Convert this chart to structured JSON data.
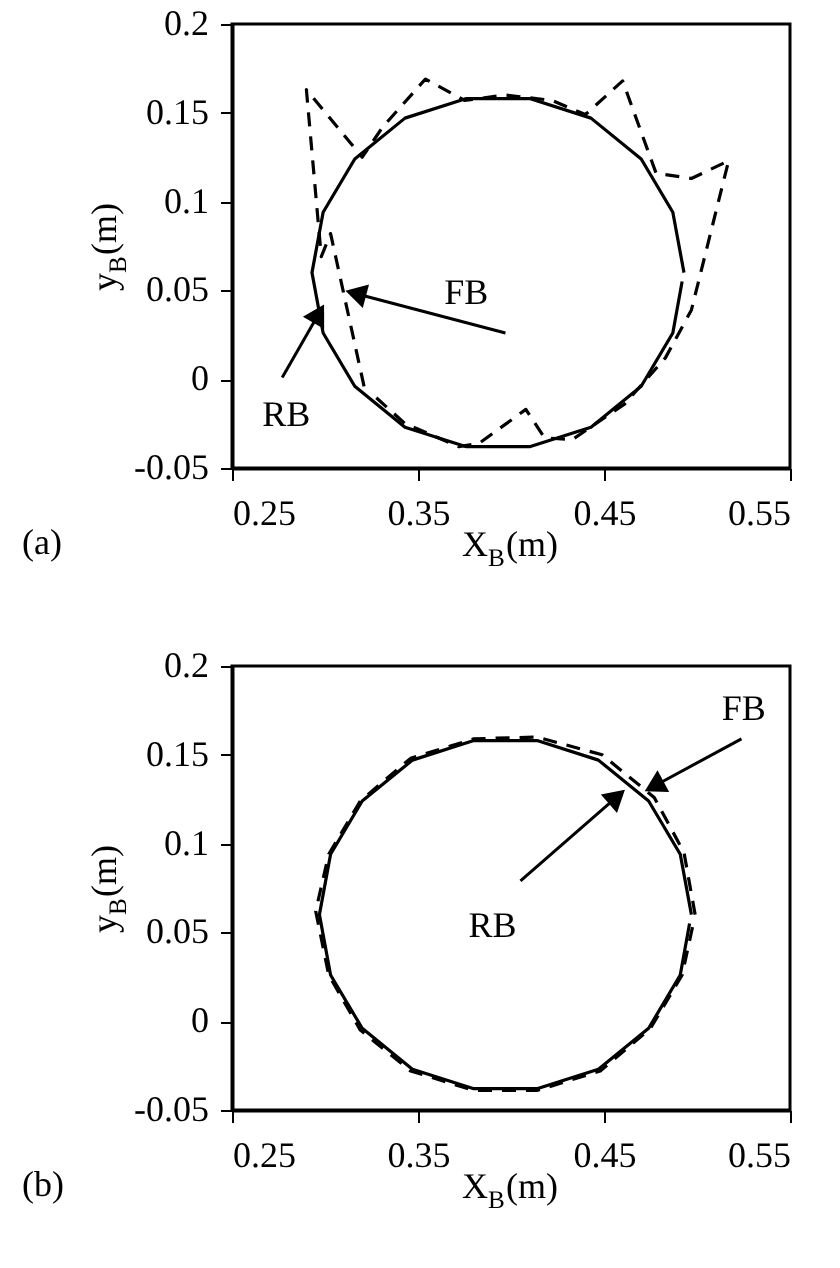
{
  "chart_data": [
    {
      "type": "line",
      "xlabel": "X$_{B}$(m)",
      "ylabel": "y$_{B}$(m)",
      "xlim": [
        0.25,
        0.55
      ],
      "ylim": [
        -0.05,
        0.2
      ],
      "xticks": [
        0.25,
        0.35,
        0.45,
        0.55
      ],
      "yticks": [
        -0.05,
        0,
        0.05,
        0.1,
        0.15,
        0.2
      ],
      "grid": false,
      "series": [
        {
          "color": "#000000",
          "line_style": "solid",
          "x": [
            0.493,
            0.487,
            0.47,
            0.443,
            0.41,
            0.376,
            0.343,
            0.316,
            0.299,
            0.293,
            0.299,
            0.316,
            0.343,
            0.376,
            0.41,
            0.443,
            0.47,
            0.487,
            0.492
          ],
          "values": [
            0.06,
            0.094,
            0.124,
            0.147,
            0.158,
            0.158,
            0.147,
            0.124,
            0.094,
            0.06,
            0.026,
            -0.004,
            -0.027,
            -0.038,
            -0.038,
            -0.027,
            -0.004,
            0.026,
            0.055
          ]
        },
        {
          "color": "#000000",
          "line_style": "dashed",
          "x": [
            0.321,
            0.303,
            0.298,
            0.29,
            0.32,
            0.331,
            0.354,
            0.375,
            0.397,
            0.422,
            0.44,
            0.46,
            0.478,
            0.497,
            0.517,
            0.497,
            0.483,
            0.461,
            0.433,
            0.418,
            0.408,
            0.383,
            0.372,
            0.343,
            0.325
          ],
          "values": [
            -0.004,
            0.082,
            0.069,
            0.163,
            0.125,
            0.142,
            0.169,
            0.157,
            0.16,
            0.157,
            0.149,
            0.168,
            0.116,
            0.113,
            0.123,
            0.039,
            0.012,
            -0.014,
            -0.034,
            -0.033,
            -0.017,
            -0.036,
            -0.038,
            -0.025,
            -0.008
          ]
        }
      ],
      "annotations": [
        "(a)",
        {
          "text": "FB",
          "x": 0.31,
          "y": 0.05
        },
        {
          "text": "RB",
          "x": 0.3,
          "y": 0.043
        }
      ]
    },
    {
      "type": "line",
      "xlabel": "X$_{B}$(m)",
      "ylabel": "y$_{B}$(m)",
      "xlim": [
        0.25,
        0.55
      ],
      "ylim": [
        -0.05,
        0.2
      ],
      "xticks": [
        0.25,
        0.35,
        0.45,
        0.55
      ],
      "yticks": [
        -0.05,
        0,
        0.05,
        0.1,
        0.15,
        0.2
      ],
      "grid": false,
      "series": [
        {
          "color": "#000000",
          "line_style": "solid",
          "x": [
            0.497,
            0.491,
            0.474,
            0.447,
            0.414,
            0.38,
            0.347,
            0.32,
            0.303,
            0.297,
            0.303,
            0.32,
            0.347,
            0.38,
            0.414,
            0.447,
            0.474,
            0.491,
            0.496
          ],
          "values": [
            0.06,
            0.094,
            0.124,
            0.147,
            0.158,
            0.158,
            0.147,
            0.124,
            0.094,
            0.06,
            0.026,
            -0.004,
            -0.027,
            -0.038,
            -0.038,
            -0.027,
            -0.004,
            0.026,
            0.055
          ]
        },
        {
          "color": "#000000",
          "line_style": "dashed",
          "x": [
            0.499,
            0.493,
            0.477,
            0.449,
            0.414,
            0.38,
            0.346,
            0.319,
            0.302,
            0.295,
            0.302,
            0.319,
            0.346,
            0.38,
            0.414,
            0.448,
            0.475,
            0.492,
            0.498
          ],
          "values": [
            0.06,
            0.095,
            0.126,
            0.15,
            0.16,
            0.159,
            0.148,
            0.124,
            0.094,
            0.062,
            0.026,
            -0.005,
            -0.028,
            -0.039,
            -0.039,
            -0.028,
            -0.004,
            0.026,
            0.055
          ]
        }
      ],
      "annotations": [
        "(b)",
        {
          "text": "FB",
          "x": 0.471,
          "y": 0.129
        },
        {
          "text": "RB",
          "x": 0.462,
          "y": 0.131
        }
      ]
    }
  ]
}
